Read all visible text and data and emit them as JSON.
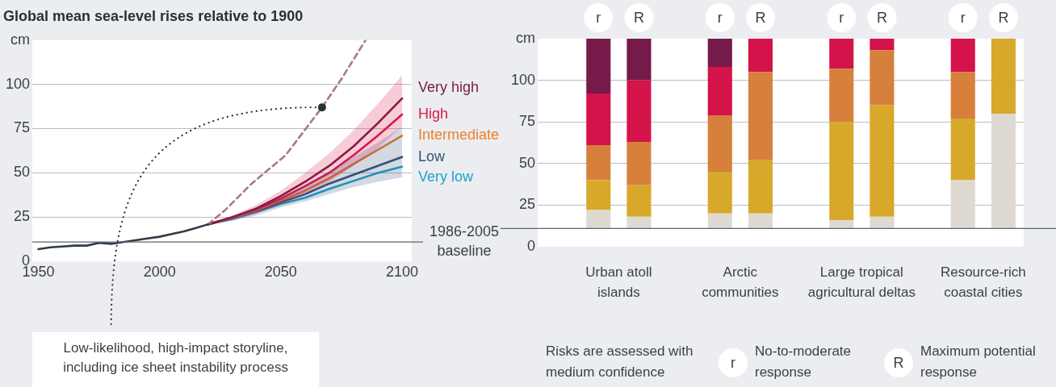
{
  "chart_data": [
    {
      "type": "line",
      "title": "Global mean sea-level rises relative to 1900",
      "xlim": [
        1947.5,
        2104
      ],
      "xticks": [
        1950,
        2000,
        2050,
        2100
      ],
      "ylim": [
        0,
        125
      ],
      "yticks": [
        0,
        25,
        50,
        75,
        100,
        {
          "value": 125,
          "label": "cm"
        }
      ],
      "grid": "y",
      "marker": "none",
      "legend": false,
      "series": [
        {
          "color": "#2f3b46",
          "x": [
            1950,
            1955,
            1960,
            1965,
            1970,
            1975,
            1980,
            1985,
            1990,
            1995,
            2000,
            2005,
            2010,
            2015,
            2020
          ],
          "values": [
            7,
            8,
            8.5,
            9,
            9,
            10.5,
            10,
            11,
            12,
            13,
            14,
            15.5,
            17,
            19,
            21
          ]
        },
        {
          "color": "#a87888",
          "line_style": "dashed",
          "x": [
            2020,
            2027,
            2038,
            2052,
            2067,
            2075,
            2085
          ],
          "values": [
            21,
            29,
            44,
            60,
            87,
            103,
            125
          ]
        },
        {
          "name": "Very high",
          "color": "#731a45",
          "x": [
            2020,
            2030,
            2040,
            2050,
            2060,
            2070,
            2080,
            2090,
            2100
          ],
          "values": [
            21,
            25,
            30,
            37,
            45,
            54,
            65,
            78,
            92
          ]
        },
        {
          "name": "High",
          "color": "#d7194b",
          "x": [
            2020,
            2030,
            2040,
            2050,
            2060,
            2070,
            2080,
            2090,
            2100
          ],
          "values": [
            21,
            25,
            29.5,
            35.5,
            42.5,
            50,
            60,
            71,
            83
          ],
          "lower": [
            21,
            23.5,
            27,
            32,
            38,
            45,
            54,
            64,
            76
          ],
          "upper": [
            21,
            26,
            32,
            40,
            50,
            61,
            74,
            89,
            105
          ]
        },
        {
          "name": "Intermediate",
          "color": "#f07e2a",
          "x": [
            2020,
            2030,
            2040,
            2050,
            2060,
            2070,
            2080,
            2090,
            2100
          ],
          "values": [
            21,
            24.5,
            29,
            34.5,
            40,
            47,
            55,
            63,
            71
          ]
        },
        {
          "name": "Low",
          "color": "#34507a",
          "x": [
            2020,
            2030,
            2040,
            2050,
            2060,
            2070,
            2080,
            2090,
            2100
          ],
          "values": [
            21,
            24.5,
            28.5,
            33.5,
            38,
            44,
            49,
            54,
            59
          ],
          "lower": [
            21,
            23,
            26,
            30.5,
            34,
            38,
            42,
            45,
            47.5
          ],
          "upper": [
            21,
            25,
            30,
            36,
            43,
            51,
            59,
            67,
            76
          ]
        },
        {
          "name": "Very low",
          "color": "#1ba3cc",
          "x": [
            2020,
            2030,
            2040,
            2050,
            2060,
            2070,
            2080,
            2090,
            2100
          ],
          "values": [
            21,
            24,
            28,
            32.5,
            36,
            41,
            45.5,
            50,
            53.5
          ]
        }
      ],
      "ref_lines": [
        {
          "axis": "y",
          "value": 11,
          "label": "1986-2005 baseline"
        }
      ],
      "annotations": [
        {
          "text": "Low-likelihood, high-impact storyline, including ice sheet instability process",
          "x": 2067,
          "y": 87
        }
      ]
    },
    {
      "type": "bar",
      "ylim": [
        0,
        125
      ],
      "yticks": [
        0,
        25,
        50,
        75,
        100,
        {
          "value": 125,
          "label": "cm"
        }
      ],
      "grid": "y",
      "legend": false,
      "categories": [
        null,
        "r",
        "R",
        null,
        "r",
        "R",
        null,
        "r",
        "R",
        null,
        "r",
        "R"
      ],
      "series": [
        {
          "color": "#dedad2",
          "base": [
            null,
            11,
            11,
            null,
            11,
            11,
            null,
            11,
            11,
            null,
            11,
            11
          ],
          "values": [
            null,
            11,
            7,
            null,
            9,
            9,
            null,
            5,
            7,
            null,
            29,
            69
          ]
        },
        {
          "color": "#d8a82a",
          "base": [
            null,
            22,
            18,
            null,
            20,
            20,
            null,
            16,
            18,
            null,
            40,
            80
          ],
          "values": [
            null,
            18,
            19,
            null,
            25,
            32,
            null,
            59,
            67,
            null,
            37,
            45
          ]
        },
        {
          "color": "#d6803c",
          "base": [
            null,
            40,
            37,
            null,
            45,
            52,
            null,
            75,
            85,
            null,
            77,
            null
          ],
          "values": [
            null,
            21,
            26,
            null,
            34,
            53,
            null,
            32,
            33,
            null,
            28,
            null
          ]
        },
        {
          "color": "#d31349",
          "base": [
            null,
            61,
            63,
            null,
            79,
            105,
            null,
            107,
            118,
            null,
            105,
            null
          ],
          "values": [
            null,
            31,
            37,
            null,
            29,
            20,
            null,
            18,
            7,
            null,
            20,
            null
          ]
        },
        {
          "color": "#761a4a",
          "base": [
            null,
            92,
            100,
            null,
            108,
            null,
            null,
            null,
            null,
            null,
            null,
            null
          ],
          "values": [
            null,
            33,
            25,
            null,
            17,
            null,
            null,
            null,
            null,
            null,
            null,
            null
          ]
        }
      ],
      "ref_lines": [
        {
          "axis": "y",
          "value": 11
        }
      ],
      "annotations": [
        "Urban atoll islands",
        "Arctic communities",
        "Large tropical agricultural deltas",
        "Resource-rich coastal cities",
        "Risks are assessed with medium confidence",
        "No-to-moderate response",
        "Maximum potential response"
      ]
    }
  ]
}
